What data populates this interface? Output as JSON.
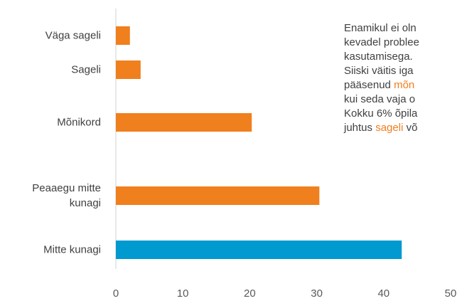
{
  "chart_data": {
    "type": "bar",
    "orientation": "horizontal",
    "categories": [
      "Väga sageli",
      "Sageli",
      "Mõnikord",
      "Peaaegu mitte kunagi",
      "Mitte kunagi"
    ],
    "values": [
      2.1,
      3.7,
      20.3,
      30.4,
      42.7
    ],
    "colors": [
      "#f07f1e",
      "#f07f1e",
      "#f07f1e",
      "#f07f1e",
      "#0099d0"
    ],
    "xlim": [
      0,
      50
    ],
    "xticks": [
      0,
      10,
      20,
      30,
      40,
      50
    ],
    "grid": false,
    "annotation": [
      [
        {
          "text": "Enamikul ei oln"
        }
      ],
      [
        {
          "text": "kevadel problee"
        }
      ],
      [
        {
          "text": "kasutamisega."
        }
      ],
      [
        {
          "text": "Siiski väitis iga"
        }
      ],
      [
        {
          "text": "pääsenud "
        },
        {
          "text": "mõn",
          "color": "#f07f1e"
        }
      ],
      [
        {
          "text": "kui seda vaja o"
        }
      ],
      [
        {
          "text": "Kokku 6% õpila"
        }
      ],
      [
        {
          "text": "juhtus "
        },
        {
          "text": "sageli",
          "color": "#f07f1e"
        },
        {
          "text": " võ"
        }
      ]
    ]
  }
}
